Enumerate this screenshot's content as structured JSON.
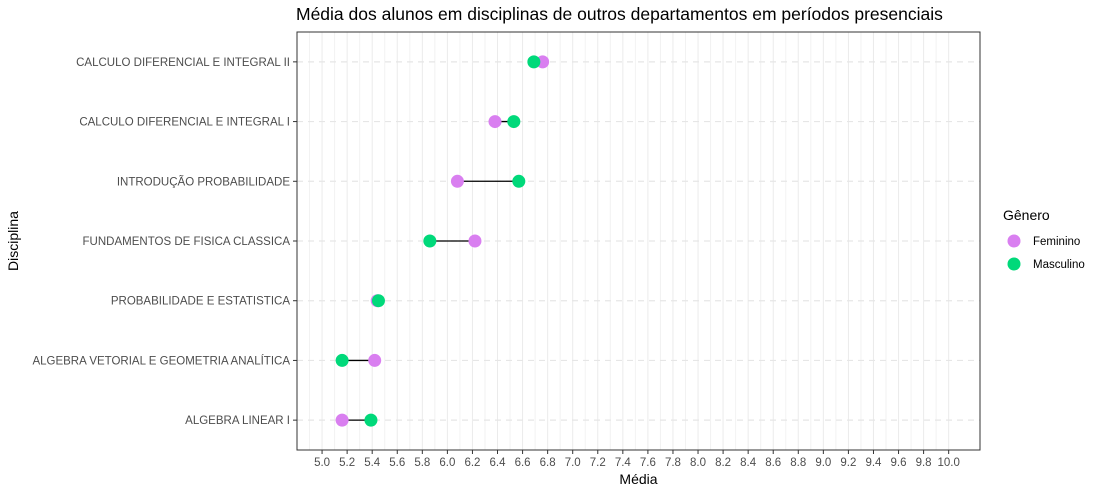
{
  "chart_data": {
    "type": "scatter",
    "subtype": "dumbbell",
    "title": "Média dos alunos em disciplinas de outros departamentos em períodos presenciais",
    "xlabel": "Média",
    "ylabel": "Disciplina",
    "xlim": [
      4.8,
      10.25
    ],
    "xticks": [
      "5.0",
      "5.2",
      "5.4",
      "5.6",
      "5.8",
      "6.0",
      "6.2",
      "6.4",
      "6.6",
      "6.8",
      "7.0",
      "7.2",
      "7.4",
      "7.6",
      "7.8",
      "8.0",
      "8.2",
      "8.4",
      "8.6",
      "8.8",
      "9.0",
      "9.2",
      "9.4",
      "9.6",
      "9.8",
      "10.0"
    ],
    "categories": [
      "CALCULO DIFERENCIAL E INTEGRAL II",
      "CALCULO DIFERENCIAL E INTEGRAL I",
      "INTRODUÇÃO  PROBABILIDADE",
      "FUNDAMENTOS DE FISICA CLASSICA",
      "PROBABILIDADE E ESTATISTICA",
      "ALGEBRA VETORIAL E GEOMETRIA ANALÍTICA",
      "ALGEBRA LINEAR I"
    ],
    "series": [
      {
        "name": "Feminino",
        "color": "#d97ff0",
        "values": [
          6.76,
          6.38,
          6.08,
          6.22,
          5.44,
          5.42,
          5.16
        ]
      },
      {
        "name": "Masculino",
        "color": "#00d97a",
        "values": [
          6.69,
          6.53,
          6.57,
          5.86,
          5.45,
          5.16,
          5.39
        ]
      }
    ],
    "grid": true,
    "legend": {
      "title": "Gênero",
      "position": "right"
    }
  }
}
